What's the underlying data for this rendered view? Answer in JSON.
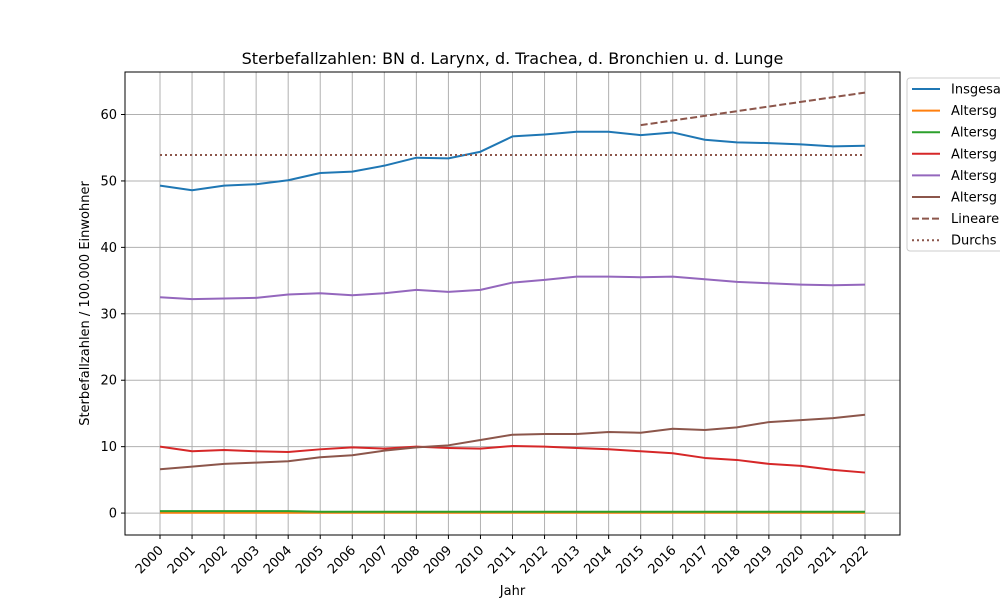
{
  "chart_data": {
    "type": "line",
    "title": "Sterbefallzahlen: BN d. Larynx, d. Trachea, d. Bronchien u. d. Lunge",
    "xlabel": "Jahr",
    "ylabel": "Sterbefallzahlen / 100.000 Einwohner",
    "x": [
      "2000",
      "2001",
      "2002",
      "2003",
      "2004",
      "2005",
      "2006",
      "2007",
      "2008",
      "2009",
      "2010",
      "2011",
      "2012",
      "2013",
      "2014",
      "2015",
      "2016",
      "2017",
      "2018",
      "2019",
      "2020",
      "2021",
      "2022"
    ],
    "ylim": [
      -3.3,
      66.4
    ],
    "yticks": [
      0,
      10,
      20,
      30,
      40,
      50,
      60
    ],
    "grid": true,
    "legend_position": "outside-top-right",
    "series": [
      {
        "name": "Insgesa",
        "color": "#1f77b4",
        "style": "solid",
        "values": [
          49.3,
          48.6,
          49.3,
          49.5,
          50.1,
          51.2,
          51.4,
          52.3,
          53.5,
          53.4,
          54.4,
          56.7,
          57.0,
          57.4,
          57.4,
          56.9,
          57.3,
          56.2,
          55.8,
          55.7,
          55.5,
          55.2,
          55.3
        ]
      },
      {
        "name": "Altersg",
        "color": "#ff7f0e",
        "style": "solid",
        "values": [
          0.05,
          0.05,
          0.05,
          0.05,
          0.05,
          0.05,
          0.05,
          0.05,
          0.05,
          0.05,
          0.05,
          0.05,
          0.05,
          0.05,
          0.05,
          0.05,
          0.05,
          0.05,
          0.05,
          0.05,
          0.05,
          0.05,
          0.05
        ]
      },
      {
        "name": "Altersg",
        "color": "#2ca02c",
        "style": "solid",
        "values": [
          0.3,
          0.3,
          0.3,
          0.3,
          0.3,
          0.2,
          0.2,
          0.2,
          0.2,
          0.2,
          0.2,
          0.2,
          0.2,
          0.2,
          0.2,
          0.2,
          0.2,
          0.2,
          0.2,
          0.2,
          0.2,
          0.2,
          0.2
        ]
      },
      {
        "name": "Altersg",
        "color": "#d62728",
        "style": "solid",
        "values": [
          10.0,
          9.3,
          9.5,
          9.3,
          9.2,
          9.6,
          9.9,
          9.7,
          10.0,
          9.8,
          9.7,
          10.1,
          10.0,
          9.8,
          9.6,
          9.3,
          9.0,
          8.3,
          8.0,
          7.4,
          7.1,
          6.5,
          6.1
        ]
      },
      {
        "name": "Altersg",
        "color": "#9467bd",
        "style": "solid",
        "values": [
          32.5,
          32.2,
          32.3,
          32.4,
          32.9,
          33.1,
          32.8,
          33.1,
          33.6,
          33.3,
          33.6,
          34.7,
          35.1,
          35.6,
          35.6,
          35.5,
          35.6,
          35.2,
          34.8,
          34.6,
          34.4,
          34.3,
          34.4
        ]
      },
      {
        "name": "Altersg",
        "color": "#8c564b",
        "style": "solid",
        "values": [
          6.6,
          7.0,
          7.4,
          7.6,
          7.8,
          8.4,
          8.7,
          9.4,
          9.9,
          10.2,
          11.0,
          11.8,
          11.9,
          11.9,
          12.2,
          12.1,
          12.7,
          12.5,
          12.9,
          13.7,
          14.0,
          14.3,
          14.8
        ]
      },
      {
        "name": "Lineare",
        "color": "#8c564b",
        "style": "dashed",
        "x": [
          "2015",
          "2016",
          "2017",
          "2018",
          "2019",
          "2020",
          "2021",
          "2022"
        ],
        "values": [
          58.4,
          59.1,
          59.8,
          60.5,
          61.2,
          61.9,
          62.6,
          63.3
        ]
      },
      {
        "name": "Durchs",
        "color": "#8c564b",
        "style": "dotted",
        "x": [
          "2000",
          "2022"
        ],
        "values": [
          53.9,
          53.9
        ]
      }
    ]
  }
}
